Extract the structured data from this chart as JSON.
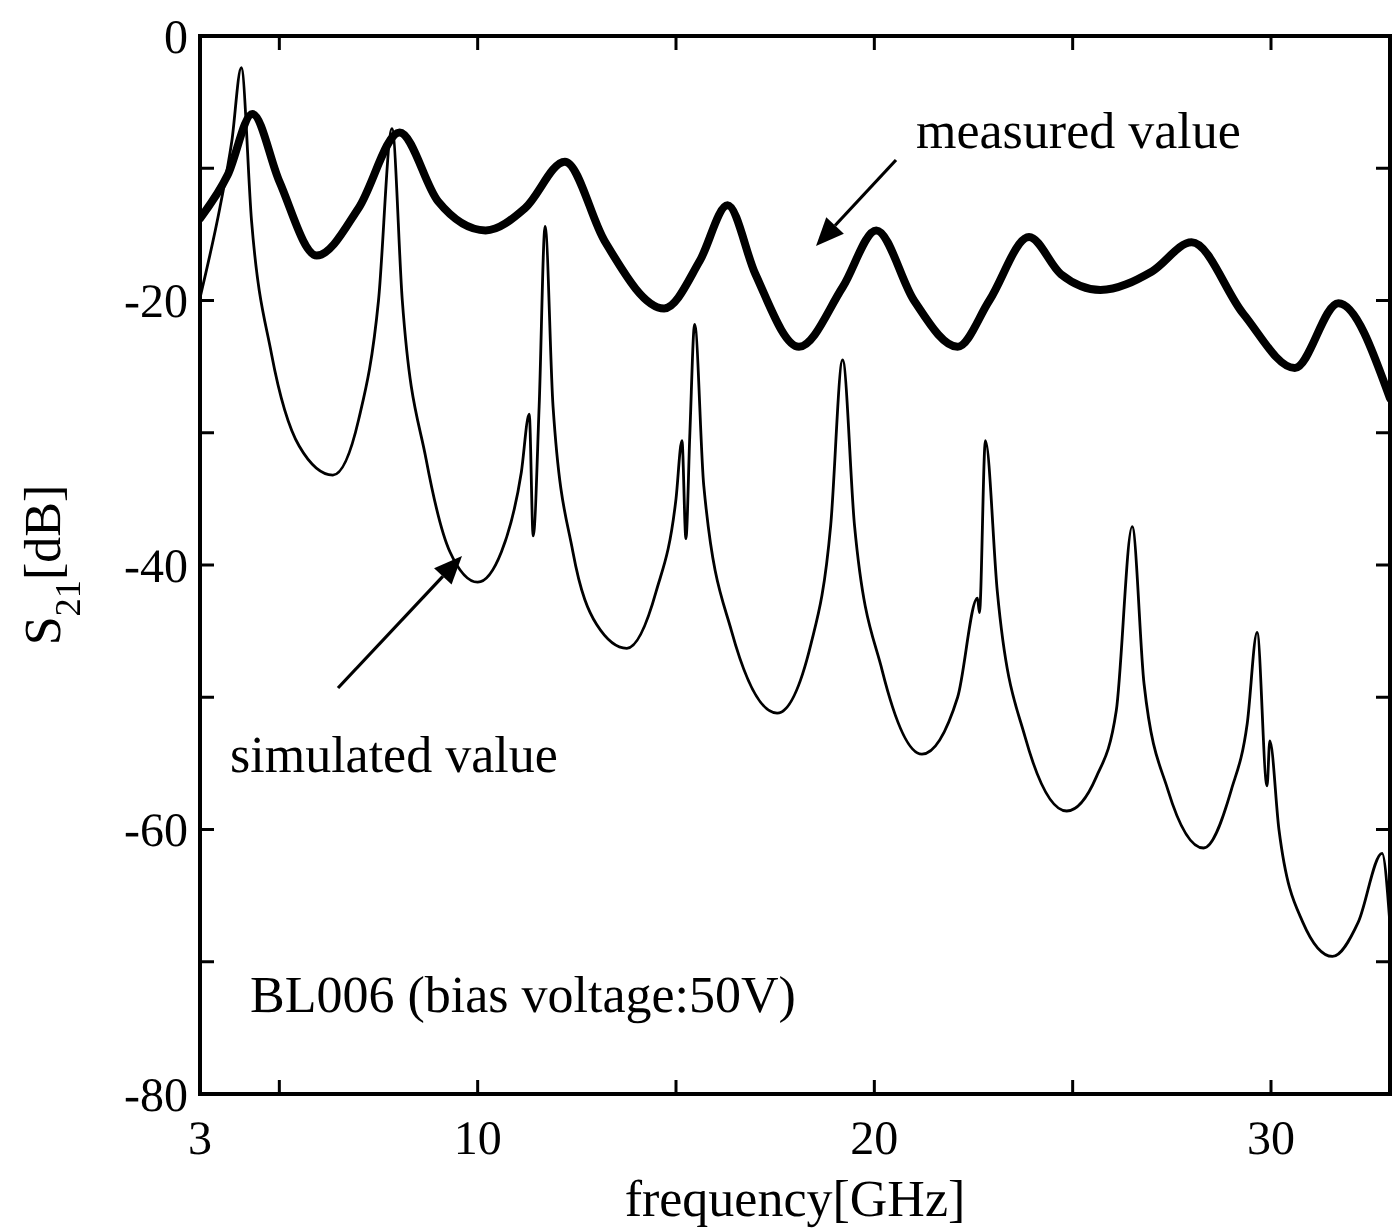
{
  "chart_data": {
    "type": "line",
    "xlabel": "frequency[GHz]",
    "ylabel": "S$_{21}$[dB]",
    "xlim": [
      3,
      33
    ],
    "ylim": [
      -80,
      0
    ],
    "xticks": [
      3,
      {
        "value": 5,
        "label": null
      },
      10,
      {
        "value": 15,
        "label": null
      },
      20,
      {
        "value": 25,
        "label": null
      },
      30
    ],
    "yticks": [
      -80,
      {
        "value": -70,
        "label": null
      },
      -60,
      {
        "value": -50,
        "label": null
      },
      -40,
      {
        "value": -30,
        "label": null
      },
      -20,
      {
        "value": -10,
        "label": null
      },
      0
    ],
    "grid": false,
    "line_style": "solid",
    "series": [
      {
        "color": "#000000",
        "x": [
          3,
          3.7,
          4.32,
          5.0,
          5.94,
          7.0,
          8.03,
          9.0,
          10.2,
          11.2,
          12.2,
          13.2,
          14.7,
          15.6,
          16.3,
          17.0,
          18.1,
          19.2,
          20.05,
          21.0,
          22.1,
          22.9,
          23.9,
          24.7,
          25.7,
          27.0,
          28.0,
          29.3,
          30.6,
          31.7,
          33
        ],
        "values": [
          -13.8,
          -10.5,
          -5.9,
          -11,
          -16.6,
          -13,
          -7.3,
          -12.5,
          -14.7,
          -13,
          -9.5,
          -15.5,
          -20.6,
          -17,
          -12.8,
          -18,
          -23.5,
          -19,
          -14.7,
          -20,
          -23.5,
          -20,
          -15.2,
          -18,
          -19.2,
          -17.8,
          -15.6,
          -21,
          -25.1,
          -20.2,
          -27.4
        ]
      },
      {
        "color": "#000000",
        "x": [
          3,
          3.5,
          3.8,
          4.04,
          4.3,
          4.8,
          5.5,
          6.35,
          7.0,
          7.5,
          7.84,
          8.1,
          8.7,
          9.3,
          10.0,
          10.6,
          11.1,
          11.3,
          11.4,
          11.55,
          11.7,
          11.9,
          12.4,
          13.0,
          13.76,
          14.5,
          15.0,
          15.15,
          15.25,
          15.35,
          15.47,
          15.7,
          16.4,
          17.55,
          18.4,
          18.9,
          19.2,
          19.5,
          20.2,
          21.2,
          22.1,
          22.6,
          22.65,
          22.8,
          23.1,
          23.8,
          24.85,
          25.6,
          26.1,
          26.5,
          26.8,
          27.4,
          28.3,
          29.0,
          29.4,
          29.65,
          29.9,
          29.97,
          30.2,
          30.8,
          31.55,
          32.2,
          32.8,
          33
        ],
        "values": [
          -19.8,
          -13,
          -8,
          -2.4,
          -14,
          -24,
          -31,
          -33.2,
          -29,
          -20,
          -7,
          -20,
          -32,
          -39,
          -41.3,
          -39,
          -33,
          -28.6,
          -37.8,
          -28,
          -14.4,
          -28,
          -39,
          -44.5,
          -46.3,
          -42,
          -35,
          -30.6,
          -38,
          -30,
          -21.8,
          -34,
          -45,
          -51.2,
          -46,
          -37,
          -24.5,
          -37,
          -48,
          -54.3,
          -50,
          -42.5,
          -43.6,
          -30.6,
          -42,
          -53,
          -58.6,
          -56,
          -51,
          -37.1,
          -49,
          -57,
          -61.4,
          -57,
          -52,
          -45.1,
          -56.7,
          -53.3,
          -60,
          -67,
          -69.6,
          -67,
          -61.8,
          -67.2
        ]
      }
    ],
    "annotations": [
      "measured value",
      "simulated value",
      "BL006 (bias voltage:50V)"
    ]
  }
}
